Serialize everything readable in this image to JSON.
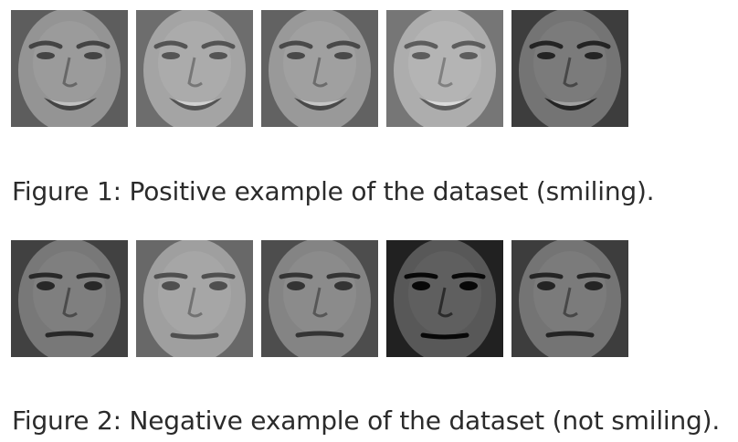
{
  "figures": [
    {
      "caption": "Figure 1: Positive example of the dataset (smiling).",
      "faces": [
        {
          "expression": "smiling",
          "tone": "#8a8a8a"
        },
        {
          "expression": "smiling",
          "tone": "#9a9a9a"
        },
        {
          "expression": "smiling",
          "tone": "#8f8f8f"
        },
        {
          "expression": "smiling",
          "tone": "#a3a3a3"
        },
        {
          "expression": "smiling",
          "tone": "#6a6a6a"
        }
      ]
    },
    {
      "caption": "Figure 2: Negative example of the dataset (not smiling).",
      "faces": [
        {
          "expression": "neutral",
          "tone": "#6e6e6e"
        },
        {
          "expression": "neutral",
          "tone": "#959595"
        },
        {
          "expression": "neutral",
          "tone": "#7a7a7a"
        },
        {
          "expression": "neutral",
          "tone": "#4e4e4e"
        },
        {
          "expression": "neutral",
          "tone": "#6a6a6a"
        }
      ]
    }
  ]
}
